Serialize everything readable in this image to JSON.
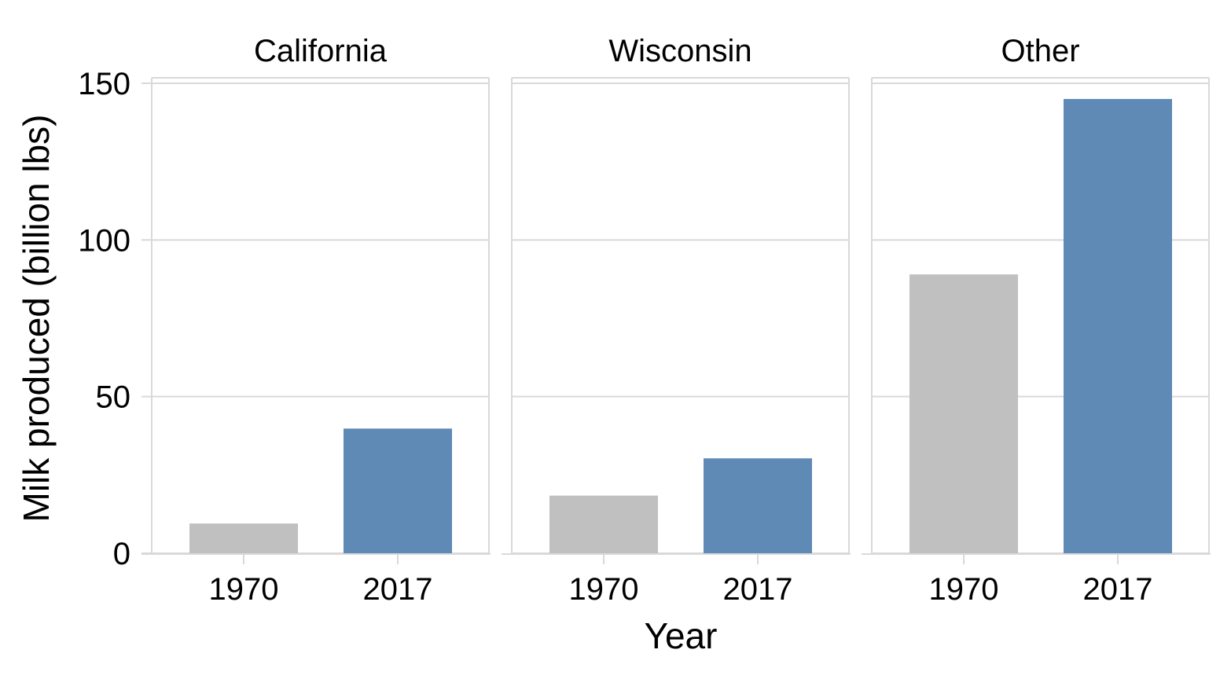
{
  "chart_data": {
    "type": "bar",
    "xlabel": "Year",
    "ylabel": "Milk produced (billion lbs)",
    "ylim": [
      0,
      150
    ],
    "yticks": [
      "0",
      "50",
      "100",
      "150"
    ],
    "grid": true,
    "facets": [
      {
        "title": "California",
        "categories": [
          "1970",
          "2017"
        ],
        "values": [
          9.5,
          39.8
        ]
      },
      {
        "title": "Wisconsin",
        "categories": [
          "1970",
          "2017"
        ],
        "values": [
          18.4,
          30.3
        ]
      },
      {
        "title": "Other",
        "categories": [
          "1970",
          "2017"
        ],
        "values": [
          89.0,
          145.0
        ]
      }
    ],
    "colors": {
      "1970": "#c0c0c0",
      "2017": "#5f8ab5"
    }
  }
}
